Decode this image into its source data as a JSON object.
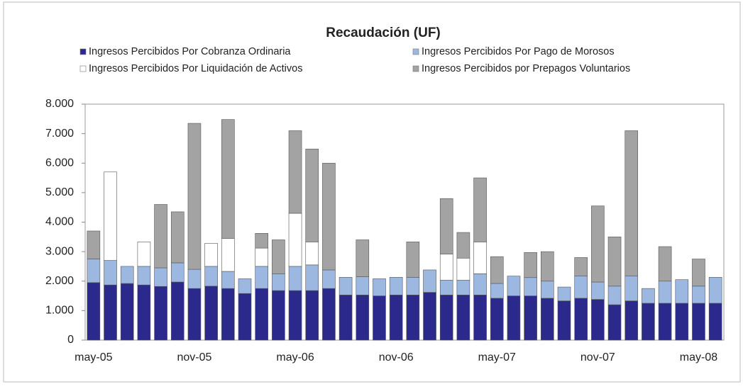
{
  "chart_data": {
    "type": "bar",
    "stacked": true,
    "title": "Recaudación (UF)",
    "categories": [
      "may-05",
      null,
      null,
      null,
      null,
      null,
      "nov-05",
      null,
      null,
      null,
      null,
      null,
      "may-06",
      null,
      null,
      null,
      null,
      null,
      "nov-06",
      null,
      null,
      null,
      null,
      null,
      "may-07",
      null,
      null,
      null,
      null,
      null,
      "nov-07",
      null,
      null,
      null,
      null,
      null,
      "may-08",
      null
    ],
    "series": [
      {
        "name": "Ingresos Percibidos Por Cobranza Ordinaria",
        "color": "#2b2a8c",
        "values": [
          1950,
          1870,
          1920,
          1870,
          1820,
          1970,
          1750,
          1830,
          1750,
          1580,
          1750,
          1680,
          1680,
          1680,
          1750,
          1530,
          1530,
          1500,
          1530,
          1530,
          1620,
          1530,
          1530,
          1530,
          1420,
          1500,
          1500,
          1420,
          1330,
          1420,
          1380,
          1200,
          1330,
          1250,
          1250,
          1250,
          1250,
          1250
        ]
      },
      {
        "name": "Ingresos Percibidos Por Pago de Morosos",
        "color": "#9cb8e0",
        "values": [
          800,
          830,
          580,
          630,
          630,
          650,
          650,
          670,
          580,
          500,
          750,
          570,
          820,
          870,
          630,
          600,
          620,
          580,
          600,
          600,
          760,
          500,
          500,
          720,
          500,
          670,
          620,
          580,
          470,
          750,
          590,
          630,
          840,
          500,
          750,
          800,
          580,
          880
        ]
      },
      {
        "name": "Ingresos Percibidos Por Liquidación de Activos",
        "color": "#ffffff",
        "values": [
          0,
          3000,
          0,
          830,
          0,
          0,
          0,
          780,
          1120,
          0,
          620,
          0,
          1800,
          780,
          0,
          0,
          0,
          0,
          0,
          0,
          0,
          890,
          750,
          1080,
          0,
          0,
          0,
          0,
          0,
          0,
          0,
          0,
          0,
          0,
          0,
          0,
          0,
          0
        ]
      },
      {
        "name": "Ingresos Percibidos por Prepagos Voluntarios",
        "color": "#a3a3a3",
        "values": [
          950,
          0,
          0,
          0,
          2150,
          1730,
          4950,
          0,
          4030,
          0,
          500,
          1150,
          2800,
          3150,
          3620,
          0,
          1250,
          0,
          0,
          1200,
          0,
          1880,
          870,
          2170,
          910,
          0,
          850,
          1000,
          0,
          630,
          2580,
          1670,
          4930,
          0,
          1170,
          0,
          920,
          0
        ]
      }
    ],
    "ylim": [
      0,
      8000
    ],
    "yticks": [
      0,
      {
        "value": 1000,
        "label": "1.000"
      },
      {
        "value": 2000,
        "label": "2.000"
      },
      {
        "value": 3000,
        "label": "3.000"
      },
      {
        "value": 4000,
        "label": "4.000"
      },
      {
        "value": 5000,
        "label": "5.000"
      },
      {
        "value": 6000,
        "label": "6.000"
      },
      {
        "value": 7000,
        "label": "7.000"
      },
      {
        "value": 8000,
        "label": "8.000"
      }
    ],
    "grid": false
  }
}
